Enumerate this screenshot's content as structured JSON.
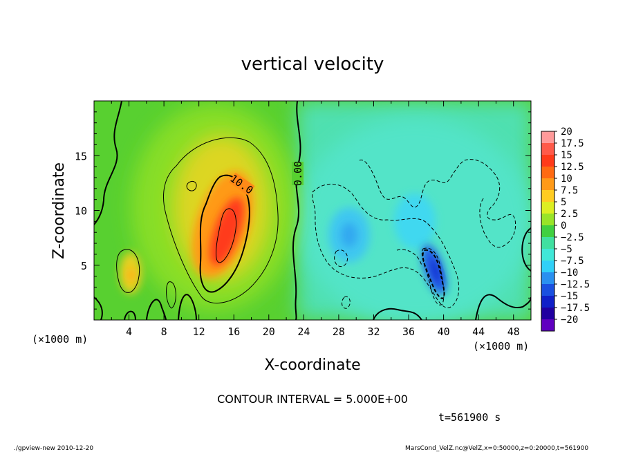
{
  "chart_data": {
    "type": "heatmap",
    "title": "vertical velocity",
    "xlabel": "X-coordinate",
    "ylabel": "Z-coordinate",
    "x_unit": "(×1000 m)",
    "xlim": [
      0,
      50
    ],
    "ylim": [
      0,
      20
    ],
    "x_ticks": [
      4,
      8,
      12,
      16,
      20,
      24,
      28,
      32,
      36,
      40,
      44,
      48
    ],
    "y_ticks": [
      5,
      10,
      15
    ],
    "colorbar": {
      "levels": [
        "20",
        "17.5",
        "15",
        "12.5",
        "10",
        "7.5",
        "5",
        "2.5",
        "0",
        "−2.5",
        "−5",
        "−7.5",
        "−10",
        "−12.5",
        "−15",
        "−17.5",
        "−20"
      ],
      "colors": [
        "#ff9a9a",
        "#ff5a4a",
        "#ff3a1a",
        "#ff6a12",
        "#ff9a18",
        "#ffcc22",
        "#ddee22",
        "#99e428",
        "#40d040",
        "#40e0a0",
        "#40e8d8",
        "#30d0f8",
        "#2a90f0",
        "#1a50e0",
        "#1020c8",
        "#2000a0",
        "#6000c0"
      ]
    },
    "contour_labels": [
      "10.0",
      "0.00"
    ],
    "contour_interval": "CONTOUR INTERVAL = 5.000E+00",
    "time": "t=561900 s",
    "footer_left": "./gpview-new  2010-12-20",
    "footer_right": "MarsCond_VelZ.nc@VelZ,x=0:50000,z=0:20000,t=561900",
    "features": [
      {
        "x": 15,
        "z": 8.5,
        "w": 14
      },
      {
        "x": 4.5,
        "z": 4.2,
        "w": 7
      },
      {
        "x": 29,
        "z": 7.5,
        "w": -7
      },
      {
        "x": 39,
        "z": 4.5,
        "w": -11
      },
      {
        "x": 35,
        "z": 10,
        "w": -5
      }
    ]
  }
}
